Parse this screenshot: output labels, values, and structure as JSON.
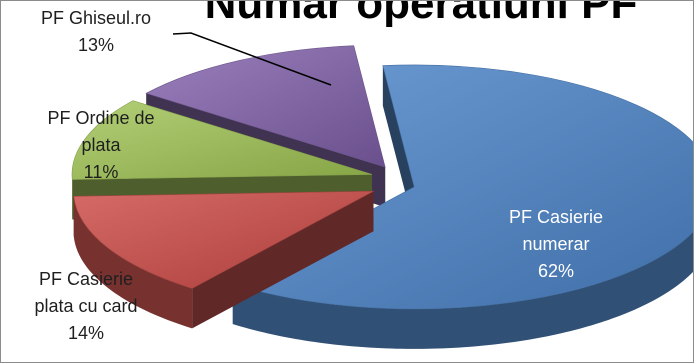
{
  "chart_data": {
    "type": "pie",
    "title": "Numar operatiuni PF",
    "three_d": true,
    "exploded": true,
    "categories": [
      "PF Casierie numerar",
      "PF Casierie plata cu card",
      "PF Ordine de plata",
      "PF Ghiseul.ro"
    ],
    "values": [
      62,
      14,
      11,
      13
    ],
    "value_labels": [
      "62%",
      "14%",
      "11%",
      "13%"
    ],
    "slice_colors": [
      "#4f81bd",
      "#c0504d",
      "#9bbb59",
      "#8064a2"
    ],
    "label_lines": [
      [
        "PF Casierie",
        "numerar"
      ],
      [
        "PF Casierie",
        "plata cu card"
      ],
      [
        "PF Ordine de",
        "plata"
      ],
      [
        "PF Ghiseul.ro"
      ]
    ]
  }
}
